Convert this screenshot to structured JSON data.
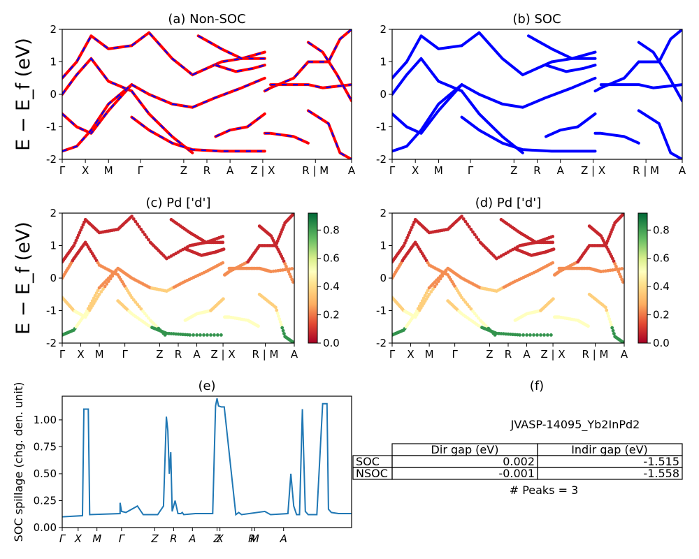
{
  "figure_id": "JVASP-14095_Yb2InPd2",
  "energy_ylabel": "E − E_f (eV)",
  "spillage_ylabel": "SOC spillage (chg. den. unit)",
  "kpath_labels": [
    "Γ",
    "X",
    "M",
    "Γ",
    "Z",
    "R",
    "A",
    "Z | X",
    "R | M",
    "A"
  ],
  "kpath_labels_e": [
    "Γ",
    "X",
    "M",
    "Γ",
    "Z",
    "R",
    "A",
    "Z",
    "X",
    "R",
    "M",
    "A"
  ],
  "colors": {
    "soc_band": "#0000ff",
    "nonsoc_band": "#ff0000",
    "spillage_line": "#1f77b4"
  },
  "colormap": "RdYlGn",
  "gap_table": {
    "headers": [
      "Dir gap (eV)",
      "Indir gap (eV)"
    ],
    "rows": [
      {
        "label": "SOC",
        "dir": "0.002",
        "indir": "-1.515"
      },
      {
        "label": "NSOC",
        "dir": "-0.001",
        "indir": "-1.558"
      }
    ],
    "peaks_text": "# Peaks = 3"
  },
  "chart_data": [
    {
      "panel": "a",
      "type": "line",
      "title": "(a) Non-SOC",
      "ylim": [
        -2,
        2
      ],
      "yticks": [
        -2,
        -1,
        0,
        1,
        2
      ],
      "series": [
        {
          "x": [
            0.0,
            0.05,
            0.1,
            0.16,
            0.24
          ],
          "y": [
            0.5,
            1.0,
            1.8,
            1.4,
            1.5
          ]
        },
        {
          "x": [
            0.0,
            0.05,
            0.1,
            0.16,
            0.24
          ],
          "y": [
            0.0,
            0.6,
            1.1,
            0.4,
            0.1
          ]
        },
        {
          "x": [
            0.0,
            0.05,
            0.1,
            0.16,
            0.24
          ],
          "y": [
            -0.6,
            -1.0,
            -1.2,
            -0.5,
            0.3
          ]
        },
        {
          "x": [
            0.0,
            0.05,
            0.1,
            0.16,
            0.24
          ],
          "y": [
            -1.75,
            -1.6,
            -1.1,
            -0.3,
            0.3
          ]
        },
        {
          "x": [
            0.24,
            0.3,
            0.38,
            0.45
          ],
          "y": [
            0.3,
            0.0,
            -0.3,
            -0.4
          ]
        },
        {
          "x": [
            0.24,
            0.3,
            0.38,
            0.45
          ],
          "y": [
            0.1,
            -0.6,
            -1.3,
            -1.8
          ]
        },
        {
          "x": [
            0.24,
            0.3,
            0.38,
            0.45
          ],
          "y": [
            1.5,
            1.9,
            1.1,
            0.6
          ]
        },
        {
          "x": [
            0.24,
            0.3,
            0.38,
            0.45,
            0.55,
            0.7
          ],
          "y": [
            -0.7,
            -1.1,
            -1.5,
            -1.7,
            -1.75,
            -1.75
          ]
        },
        {
          "x": [
            0.45,
            0.55,
            0.62,
            0.7
          ],
          "y": [
            0.6,
            1.0,
            1.1,
            1.3
          ]
        },
        {
          "x": [
            0.45,
            0.53,
            0.62,
            0.7
          ],
          "y": [
            -0.4,
            -0.1,
            0.2,
            0.5
          ]
        },
        {
          "x": [
            0.53,
            0.6,
            0.66,
            0.7
          ],
          "y": [
            0.9,
            0.7,
            0.8,
            0.9
          ]
        },
        {
          "x": [
            0.53,
            0.58,
            0.64,
            0.7
          ],
          "y": [
            -1.3,
            -1.1,
            -1.0,
            -0.6
          ]
        },
        {
          "x": [
            0.47,
            0.55,
            0.62,
            0.7
          ],
          "y": [
            1.8,
            1.4,
            1.1,
            1.1
          ]
        },
        {
          "x": [
            0.7,
            0.72,
            0.8,
            0.85
          ],
          "y": [
            0.1,
            0.2,
            0.5,
            1.0
          ]
        },
        {
          "x": [
            0.7,
            0.72,
            0.8,
            0.85
          ],
          "y": [
            -1.2,
            -1.2,
            -1.3,
            -1.5
          ]
        },
        {
          "x": [
            0.72,
            0.78,
            0.85,
            0.9,
            1.0
          ],
          "y": [
            0.3,
            0.3,
            0.3,
            0.2,
            0.3
          ]
        },
        {
          "x": [
            0.85,
            0.9,
            0.95,
            1.0
          ],
          "y": [
            1.6,
            1.3,
            0.6,
            -0.2
          ]
        },
        {
          "x": [
            0.85,
            0.92,
            0.96,
            1.0
          ],
          "y": [
            -0.5,
            -0.9,
            -1.8,
            -2.0
          ]
        },
        {
          "x": [
            0.85,
            0.92,
            0.96,
            1.0
          ],
          "y": [
            1.0,
            1.0,
            1.7,
            2.0
          ]
        }
      ]
    },
    {
      "panel": "b",
      "type": "line",
      "title": "(b) SOC",
      "ylim": [
        -2,
        2
      ],
      "yticks": [
        -2,
        -1,
        0,
        1,
        2
      ],
      "series": [
        {
          "x": [
            0.0,
            0.05,
            0.1,
            0.16,
            0.24
          ],
          "y": [
            0.5,
            1.0,
            1.8,
            1.4,
            1.5
          ]
        },
        {
          "x": [
            0.0,
            0.05,
            0.1,
            0.16,
            0.24
          ],
          "y": [
            0.0,
            0.6,
            1.1,
            0.4,
            0.1
          ]
        },
        {
          "x": [
            0.0,
            0.05,
            0.1,
            0.16,
            0.24
          ],
          "y": [
            -0.6,
            -1.0,
            -1.2,
            -0.5,
            0.3
          ]
        },
        {
          "x": [
            0.0,
            0.05,
            0.1,
            0.16,
            0.24
          ],
          "y": [
            -1.75,
            -1.6,
            -1.1,
            -0.3,
            0.3
          ]
        },
        {
          "x": [
            0.24,
            0.3,
            0.38,
            0.45
          ],
          "y": [
            0.3,
            0.0,
            -0.3,
            -0.4
          ]
        },
        {
          "x": [
            0.24,
            0.3,
            0.38,
            0.45
          ],
          "y": [
            0.1,
            -0.6,
            -1.3,
            -1.8
          ]
        },
        {
          "x": [
            0.24,
            0.3,
            0.38,
            0.45
          ],
          "y": [
            1.5,
            1.9,
            1.1,
            0.6
          ]
        },
        {
          "x": [
            0.24,
            0.3,
            0.38,
            0.45,
            0.55,
            0.7
          ],
          "y": [
            -0.7,
            -1.1,
            -1.5,
            -1.7,
            -1.75,
            -1.75
          ]
        },
        {
          "x": [
            0.45,
            0.55,
            0.62,
            0.7
          ],
          "y": [
            0.6,
            1.0,
            1.1,
            1.3
          ]
        },
        {
          "x": [
            0.45,
            0.53,
            0.62,
            0.7
          ],
          "y": [
            -0.4,
            -0.1,
            0.2,
            0.5
          ]
        },
        {
          "x": [
            0.53,
            0.6,
            0.66,
            0.7
          ],
          "y": [
            0.9,
            0.7,
            0.8,
            0.9
          ]
        },
        {
          "x": [
            0.53,
            0.58,
            0.64,
            0.7
          ],
          "y": [
            -1.3,
            -1.1,
            -1.0,
            -0.6
          ]
        },
        {
          "x": [
            0.47,
            0.55,
            0.62,
            0.7
          ],
          "y": [
            1.8,
            1.4,
            1.1,
            1.1
          ]
        },
        {
          "x": [
            0.7,
            0.72,
            0.8,
            0.85
          ],
          "y": [
            0.1,
            0.2,
            0.5,
            1.0
          ]
        },
        {
          "x": [
            0.7,
            0.72,
            0.8,
            0.85
          ],
          "y": [
            -1.2,
            -1.2,
            -1.3,
            -1.5
          ]
        },
        {
          "x": [
            0.72,
            0.78,
            0.85,
            0.9,
            1.0
          ],
          "y": [
            0.3,
            0.3,
            0.3,
            0.2,
            0.3
          ]
        },
        {
          "x": [
            0.85,
            0.9,
            0.95,
            1.0
          ],
          "y": [
            1.6,
            1.3,
            0.6,
            -0.2
          ]
        },
        {
          "x": [
            0.85,
            0.92,
            0.96,
            1.0
          ],
          "y": [
            -0.5,
            -0.9,
            -1.8,
            -2.0
          ]
        },
        {
          "x": [
            0.85,
            0.92,
            0.96,
            1.0
          ],
          "y": [
            1.0,
            1.0,
            1.7,
            2.0
          ]
        }
      ]
    },
    {
      "panel": "c",
      "type": "scatter",
      "title": "(c)  Pd ['d']",
      "ylim": [
        -2,
        2
      ],
      "yticks": [
        -2,
        -1,
        0,
        1,
        2
      ],
      "colorbar": {
        "ticks": [
          0.0,
          0.2,
          0.4,
          0.6,
          0.8
        ],
        "range": [
          0,
          0.92
        ]
      }
    },
    {
      "panel": "d",
      "type": "scatter",
      "title": "(d) Pd ['d']",
      "ylim": [
        -2,
        2
      ],
      "yticks": [
        -2,
        -1,
        0,
        1,
        2
      ],
      "colorbar": {
        "ticks": [
          0.0,
          0.2,
          0.4,
          0.6,
          0.8
        ],
        "range": [
          0,
          0.92
        ]
      }
    },
    {
      "panel": "e",
      "type": "line",
      "title": "(e)",
      "ylabel": "SOC spillage (chg. den. unit)",
      "ylim": [
        0,
        1.22
      ],
      "yticks": [
        0.0,
        0.25,
        0.5,
        0.75,
        1.0
      ],
      "x": [
        0,
        0.07,
        0.075,
        0.08,
        0.09,
        0.095,
        0.2,
        0.2,
        0.205,
        0.22,
        0.26,
        0.28,
        0.33,
        0.35,
        0.36,
        0.365,
        0.37,
        0.375,
        0.38,
        0.385,
        0.39,
        0.4,
        0.41,
        0.415,
        0.42,
        0.46,
        0.5,
        0.52,
        0.53,
        0.535,
        0.54,
        0.55,
        0.56,
        0.6,
        0.61,
        0.62,
        0.7,
        0.72,
        0.78,
        0.79,
        0.8,
        0.81,
        0.82,
        0.83,
        0.84,
        0.85,
        0.88,
        0.9,
        0.91,
        0.915,
        0.92,
        0.93,
        0.955,
        1.0
      ],
      "y": [
        0.1,
        0.11,
        1.1,
        1.1,
        1.1,
        0.12,
        0.13,
        0.23,
        0.15,
        0.14,
        0.2,
        0.12,
        0.12,
        0.2,
        1.03,
        0.9,
        0.5,
        0.7,
        0.15,
        0.2,
        0.25,
        0.13,
        0.13,
        0.14,
        0.12,
        0.13,
        0.13,
        0.13,
        1.13,
        1.2,
        1.13,
        1.12,
        1.12,
        0.12,
        0.14,
        0.12,
        0.15,
        0.12,
        0.13,
        0.5,
        0.2,
        0.12,
        0.12,
        1.1,
        0.15,
        0.12,
        0.12,
        1.15,
        1.15,
        1.15,
        0.17,
        0.14,
        0.13,
        0.13
      ]
    }
  ]
}
